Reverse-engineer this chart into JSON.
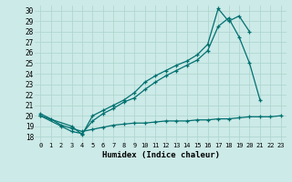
{
  "title": "",
  "xlabel": "Humidex (Indice chaleur)",
  "bg_color": "#cceae7",
  "line_color": "#007070",
  "grid_color": "#aad4d0",
  "xlim": [
    -0.5,
    23.5
  ],
  "ylim": [
    17.5,
    30.5
  ],
  "xticks": [
    0,
    1,
    2,
    3,
    4,
    5,
    6,
    7,
    8,
    9,
    10,
    11,
    12,
    13,
    14,
    15,
    16,
    17,
    18,
    19,
    20,
    21,
    22,
    23
  ],
  "yticks": [
    18,
    19,
    20,
    21,
    22,
    23,
    24,
    25,
    26,
    27,
    28,
    29,
    30
  ],
  "series": [
    {
      "x": [
        0,
        1,
        2,
        3,
        4,
        5,
        6,
        7,
        8,
        9,
        10,
        11,
        12,
        13,
        14,
        15,
        16,
        17,
        18,
        19,
        20,
        21,
        22,
        23
      ],
      "y": [
        20.2,
        19.7,
        19.1,
        18.8,
        18.5,
        18.7,
        18.9,
        19.1,
        19.2,
        19.3,
        19.3,
        19.4,
        19.5,
        19.5,
        19.5,
        19.6,
        19.6,
        19.7,
        19.7,
        19.8,
        19.9,
        19.9,
        19.9,
        20.0
      ]
    },
    {
      "x": [
        0,
        2,
        3,
        4,
        5,
        6,
        7,
        8,
        9,
        10,
        11,
        12,
        13,
        14,
        15,
        16,
        17,
        18,
        19,
        20,
        21
      ],
      "y": [
        20.0,
        19.0,
        18.5,
        18.3,
        19.5,
        20.2,
        20.7,
        21.3,
        21.7,
        22.5,
        23.2,
        23.8,
        24.3,
        24.8,
        25.3,
        26.2,
        28.5,
        29.3,
        27.5,
        25.0,
        21.5
      ]
    },
    {
      "x": [
        0,
        3,
        4,
        5,
        6,
        7,
        8,
        9,
        10,
        11,
        12,
        13,
        14,
        15,
        16,
        17,
        18,
        19,
        20
      ],
      "y": [
        20.0,
        19.0,
        18.2,
        20.0,
        20.5,
        21.0,
        21.5,
        22.2,
        23.2,
        23.8,
        24.3,
        24.8,
        25.2,
        25.8,
        26.8,
        30.2,
        29.0,
        29.5,
        28.0
      ]
    }
  ]
}
